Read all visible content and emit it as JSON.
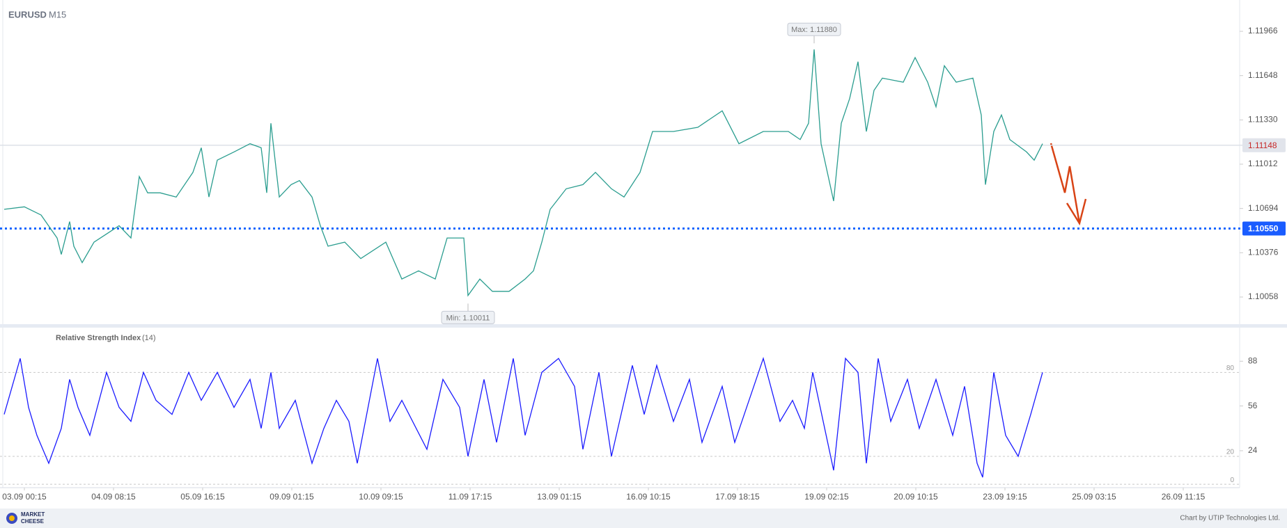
{
  "symbol": "EURUSD",
  "timeframe": "M15",
  "logo": [
    "MARKET",
    "CHEESE"
  ],
  "footer": "Chart by UTIP Technologies Ltd.",
  "chart_data": [
    {
      "type": "line",
      "color": "#2a9d8f",
      "x": [
        -29,
        0,
        24,
        47,
        53,
        65,
        71,
        83,
        100,
        118,
        136,
        153,
        165,
        177,
        195,
        218,
        242,
        254,
        265,
        277,
        301,
        324,
        340,
        348,
        354,
        366,
        383,
        395,
        413,
        425,
        436,
        460,
        483,
        519,
        542,
        566,
        590,
        607,
        631,
        637,
        654,
        672,
        696,
        719,
        731,
        743,
        755,
        778,
        802,
        820,
        843,
        861,
        884,
        902,
        932,
        967,
        1002,
        1026,
        1061,
        1097,
        1114,
        1126,
        1134,
        1144,
        1162,
        1173,
        1185,
        1197,
        1209,
        1220,
        1232,
        1262,
        1279,
        1297,
        1309,
        1321,
        1338,
        1362,
        1374,
        1380,
        1392,
        1403,
        1415,
        1439,
        1450,
        1462
      ],
      "values": [
        1.10688,
        1.10706,
        1.10647,
        1.10482,
        1.10364,
        1.106,
        1.10423,
        1.10305,
        1.10452,
        1.10511,
        1.1057,
        1.10482,
        1.10923,
        1.10806,
        1.10806,
        1.10776,
        1.10953,
        1.1113,
        1.10776,
        1.11041,
        1.111,
        1.11159,
        1.1113,
        1.10806,
        1.11306,
        1.10776,
        1.10865,
        1.10894,
        1.10776,
        1.1057,
        1.10423,
        1.10452,
        1.10334,
        1.10452,
        1.10187,
        1.10246,
        1.10187,
        1.10482,
        1.10482,
        1.10069,
        1.10187,
        1.10099,
        1.10099,
        1.10187,
        1.10246,
        1.10452,
        1.10688,
        1.10835,
        1.10865,
        1.10953,
        1.10835,
        1.10776,
        1.10953,
        1.11247,
        1.11247,
        1.11277,
        1.11395,
        1.11159,
        1.11247,
        1.11247,
        1.11189,
        1.11306,
        1.11836,
        1.11159,
        1.10747,
        1.11306,
        1.11483,
        1.11748,
        1.11247,
        1.11542,
        1.1163,
        1.11601,
        1.11778,
        1.11601,
        1.11424,
        1.11719,
        1.11601,
        1.1163,
        1.11365,
        1.10865,
        1.11247,
        1.11365,
        1.11189,
        1.111,
        1.11041,
        1.11159
      ],
      "xlim": [
        -35,
        1745
      ],
      "xticks": [
        {
          "value": 0,
          "label": "03.09 00:15"
        },
        {
          "value": 128,
          "label": "04.09 08:15"
        },
        {
          "value": 256,
          "label": "05.09 16:15"
        },
        {
          "value": 384,
          "label": "09.09 01:15"
        },
        {
          "value": 512,
          "label": "10.09 09:15"
        },
        {
          "value": 640,
          "label": "11.09 17:15"
        },
        {
          "value": 768,
          "label": "13.09 01:15"
        },
        {
          "value": 896,
          "label": "16.09 10:15"
        },
        {
          "value": 1024,
          "label": "17.09 18:15"
        },
        {
          "value": 1152,
          "label": "19.09 02:15"
        },
        {
          "value": 1280,
          "label": "20.09 10:15"
        },
        {
          "value": 1408,
          "label": "23.09 19:15"
        },
        {
          "value": 1536,
          "label": "25.09 03:15"
        },
        {
          "value": 1664,
          "label": "26.09 11:15"
        }
      ],
      "ylim": [
        1.09863,
        1.12191
      ],
      "yticks": [
        1.11966,
        1.11648,
        {
          "value": 1.1133,
          "label": "1.11330"
        },
        1.11012,
        1.10694,
        1.10376,
        1.10058
      ],
      "last_price": 1.11148,
      "level": {
        "value": 1.1055,
        "label": "1.10550"
      },
      "annotations": [
        {
          "text": "Max: 1.11880",
          "x": 1134,
          "y": 1.1188
        },
        {
          "text": "Min: 1.10011",
          "x": 637,
          "y": 1.10011
        }
      ]
    },
    {
      "type": "line",
      "title": "Relative Strength Index",
      "params": "(14)",
      "color": "#1a1aff",
      "x": [
        -29,
        -6,
        6,
        18,
        35,
        53,
        65,
        77,
        94,
        118,
        136,
        153,
        171,
        189,
        212,
        236,
        254,
        277,
        301,
        324,
        340,
        354,
        366,
        389,
        413,
        430,
        448,
        466,
        478,
        507,
        525,
        542,
        578,
        601,
        625,
        637,
        660,
        678,
        702,
        719,
        743,
        767,
        790,
        802,
        825,
        843,
        873,
        890,
        908,
        932,
        955,
        973,
        1002,
        1020,
        1061,
        1085,
        1103,
        1120,
        1132,
        1162,
        1179,
        1197,
        1209,
        1226,
        1244,
        1268,
        1285,
        1309,
        1333,
        1350,
        1368,
        1376,
        1392,
        1409,
        1427,
        1445,
        1462
      ],
      "values": [
        50,
        90,
        55,
        35,
        15,
        40,
        75,
        55,
        35,
        80,
        55,
        45,
        80,
        60,
        50,
        80,
        60,
        80,
        55,
        75,
        40,
        80,
        40,
        60,
        15,
        40,
        60,
        45,
        15,
        90,
        45,
        60,
        25,
        75,
        55,
        20,
        75,
        30,
        90,
        35,
        80,
        90,
        70,
        25,
        80,
        20,
        85,
        50,
        85,
        45,
        75,
        30,
        70,
        30,
        90,
        45,
        60,
        40,
        80,
        10,
        90,
        80,
        15,
        90,
        45,
        75,
        40,
        75,
        35,
        70,
        15,
        5,
        80,
        35,
        20,
        50,
        80
      ],
      "xlim": [
        -35,
        1745
      ],
      "ylim": [
        -2.4,
        112
      ],
      "yticks": [
        24,
        56,
        88
      ],
      "levels": [
        0,
        20,
        80
      ]
    }
  ]
}
